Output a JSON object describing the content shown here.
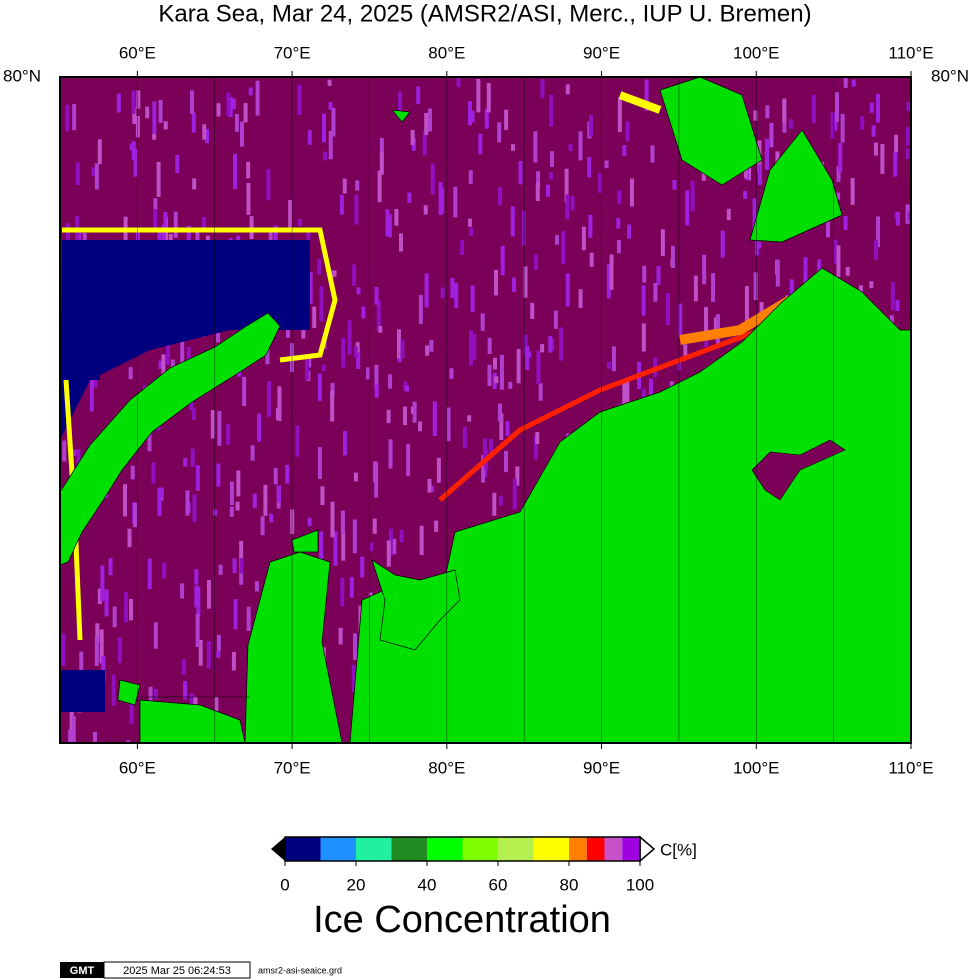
{
  "title": "Kara Sea, Mar 24, 2025 (AMSR2/ASI, Merc., IUP U. Bremen)",
  "map": {
    "lon_range": [
      55,
      110
    ],
    "lon_ticks": [
      {
        "value": 60,
        "label": "60°E"
      },
      {
        "value": 70,
        "label": "70°E"
      },
      {
        "value": 80,
        "label": "80°E"
      },
      {
        "value": 90,
        "label": "90°E"
      },
      {
        "value": 100,
        "label": "100°E"
      },
      {
        "value": 110,
        "label": "110°E"
      }
    ],
    "lon_grid": [
      60,
      65,
      70,
      75,
      80,
      85,
      90,
      95,
      100,
      105
    ],
    "lat_label": "80°N"
  },
  "colorbar": {
    "title": "Ice Concentration",
    "unit": "C[%]",
    "range": [
      0,
      100
    ],
    "ticks": [
      0,
      20,
      40,
      60,
      80,
      100
    ],
    "levels": [
      0,
      10,
      20,
      30,
      40,
      50,
      60,
      70,
      80,
      85,
      90,
      95,
      100
    ],
    "colors": [
      "#00007f",
      "#1e90ff",
      "#20f0a0",
      "#228b22",
      "#00ff00",
      "#7fff00",
      "#b4f050",
      "#ffff00",
      "#ff8000",
      "#ff0000",
      "#c850c8",
      "#a000e0"
    ]
  },
  "footer": {
    "logo": "GMT",
    "timestamp": "2025 Mar 25 06:24:53",
    "file": "amsr2-asi-seaice.grd"
  }
}
